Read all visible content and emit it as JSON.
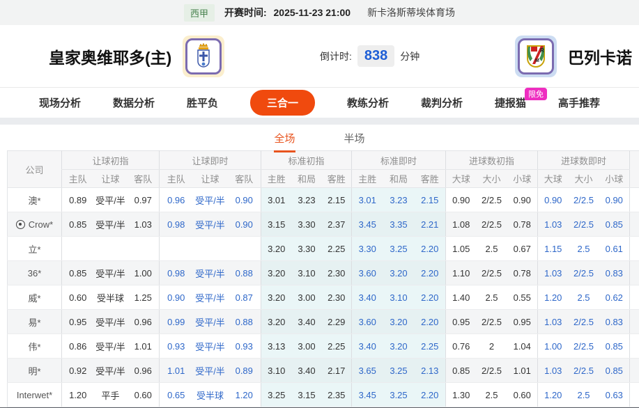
{
  "top_bar": {
    "league": "西甲",
    "kickoff_label": "开赛时间:",
    "kickoff_time": "2025-11-23 21:00",
    "venue": "新卡洛斯蒂埃体育场"
  },
  "match_header": {
    "home_team": "皇家奥维耶多(主)",
    "away_team": "巴列卡诺",
    "countdown_label": "倒计时:",
    "countdown_value": "838",
    "countdown_unit": "分钟"
  },
  "nav": {
    "items": [
      {
        "label": "现场分析",
        "active": false
      },
      {
        "label": "数据分析",
        "active": false
      },
      {
        "label": "胜平负",
        "active": false
      },
      {
        "label": "三合一",
        "active": true
      },
      {
        "label": "教练分析",
        "active": false
      },
      {
        "label": "裁判分析",
        "active": false
      },
      {
        "label": "捷报猫",
        "active": false,
        "badge": "限免"
      },
      {
        "label": "高手推荐",
        "active": false
      }
    ]
  },
  "sub_tabs": [
    {
      "label": "全场",
      "active": true
    },
    {
      "label": "半场",
      "active": false
    }
  ],
  "odds_table": {
    "company_header": "公司",
    "groups": [
      {
        "title": "让球初指",
        "cols": [
          "主队",
          "让球",
          "客队"
        ]
      },
      {
        "title": "让球即时",
        "cols": [
          "主队",
          "让球",
          "客队"
        ]
      },
      {
        "title": "标准初指",
        "cols": [
          "主胜",
          "和局",
          "客胜"
        ]
      },
      {
        "title": "标准即时",
        "cols": [
          "主胜",
          "和局",
          "客胜"
        ]
      },
      {
        "title": "进球数初指",
        "cols": [
          "大球",
          "大小",
          "小球"
        ]
      },
      {
        "title": "进球数即时",
        "cols": [
          "大球",
          "大小",
          "小球"
        ]
      }
    ],
    "rows": [
      {
        "company": "澳*",
        "has_icon": false,
        "handicap_initial": [
          "0.89",
          "受平/半",
          "0.97"
        ],
        "handicap_live": [
          "0.96",
          "受平/半",
          "0.90"
        ],
        "std_initial": [
          "3.01",
          "3.23",
          "2.15"
        ],
        "std_live": [
          "3.01",
          "3.23",
          "2.15"
        ],
        "goals_initial": [
          "0.90",
          "2/2.5",
          "0.90"
        ],
        "goals_live": [
          "0.90",
          "2/2.5",
          "0.90"
        ]
      },
      {
        "company": "Crow*",
        "has_icon": true,
        "handicap_initial": [
          "0.85",
          "受平/半",
          "1.03"
        ],
        "handicap_live": [
          "0.98",
          "受平/半",
          "0.90"
        ],
        "std_initial": [
          "3.15",
          "3.30",
          "2.37"
        ],
        "std_live": [
          "3.45",
          "3.35",
          "2.21"
        ],
        "goals_initial": [
          "1.08",
          "2/2.5",
          "0.78"
        ],
        "goals_live": [
          "1.03",
          "2/2.5",
          "0.85"
        ]
      },
      {
        "company": "立*",
        "has_icon": false,
        "handicap_initial": [
          "",
          "",
          ""
        ],
        "handicap_live": [
          "",
          "",
          ""
        ],
        "std_initial": [
          "3.20",
          "3.30",
          "2.25"
        ],
        "std_live": [
          "3.30",
          "3.25",
          "2.20"
        ],
        "goals_initial": [
          "1.05",
          "2.5",
          "0.67"
        ],
        "goals_live": [
          "1.15",
          "2.5",
          "0.61"
        ]
      },
      {
        "company": "36*",
        "has_icon": false,
        "handicap_initial": [
          "0.85",
          "受平/半",
          "1.00"
        ],
        "handicap_live": [
          "0.98",
          "受平/半",
          "0.88"
        ],
        "std_initial": [
          "3.20",
          "3.10",
          "2.30"
        ],
        "std_live": [
          "3.60",
          "3.20",
          "2.20"
        ],
        "goals_initial": [
          "1.10",
          "2/2.5",
          "0.78"
        ],
        "goals_live": [
          "1.03",
          "2/2.5",
          "0.83"
        ]
      },
      {
        "company": "威*",
        "has_icon": false,
        "handicap_initial": [
          "0.60",
          "受半球",
          "1.25"
        ],
        "handicap_live": [
          "0.90",
          "受平/半",
          "0.87"
        ],
        "std_initial": [
          "3.20",
          "3.00",
          "2.30"
        ],
        "std_live": [
          "3.40",
          "3.10",
          "2.20"
        ],
        "goals_initial": [
          "1.40",
          "2.5",
          "0.55"
        ],
        "goals_live": [
          "1.20",
          "2.5",
          "0.62"
        ]
      },
      {
        "company": "易*",
        "has_icon": false,
        "handicap_initial": [
          "0.95",
          "受平/半",
          "0.96"
        ],
        "handicap_live": [
          "0.99",
          "受平/半",
          "0.88"
        ],
        "std_initial": [
          "3.20",
          "3.40",
          "2.29"
        ],
        "std_live": [
          "3.60",
          "3.20",
          "2.20"
        ],
        "goals_initial": [
          "0.95",
          "2/2.5",
          "0.95"
        ],
        "goals_live": [
          "1.03",
          "2/2.5",
          "0.83"
        ]
      },
      {
        "company": "伟*",
        "has_icon": false,
        "handicap_initial": [
          "0.86",
          "受平/半",
          "1.01"
        ],
        "handicap_live": [
          "0.93",
          "受平/半",
          "0.93"
        ],
        "std_initial": [
          "3.13",
          "3.00",
          "2.25"
        ],
        "std_live": [
          "3.40",
          "3.20",
          "2.25"
        ],
        "goals_initial": [
          "0.76",
          "2",
          "1.04"
        ],
        "goals_live": [
          "1.00",
          "2/2.5",
          "0.85"
        ]
      },
      {
        "company": "明*",
        "has_icon": false,
        "handicap_initial": [
          "0.92",
          "受平/半",
          "0.96"
        ],
        "handicap_live": [
          "1.01",
          "受平/半",
          "0.89"
        ],
        "std_initial": [
          "3.10",
          "3.40",
          "2.17"
        ],
        "std_live": [
          "3.65",
          "3.25",
          "2.13"
        ],
        "goals_initial": [
          "0.85",
          "2/2.5",
          "1.01"
        ],
        "goals_live": [
          "1.03",
          "2/2.5",
          "0.85"
        ]
      },
      {
        "company": "Interwet*",
        "has_icon": false,
        "handicap_initial": [
          "1.20",
          "平手",
          "0.60"
        ],
        "handicap_live": [
          "0.65",
          "受半球",
          "1.20"
        ],
        "std_initial": [
          "3.25",
          "3.15",
          "2.35"
        ],
        "std_live": [
          "3.45",
          "3.25",
          "2.20"
        ],
        "goals_initial": [
          "1.30",
          "2.5",
          "0.60"
        ],
        "goals_live": [
          "1.20",
          "2.5",
          "0.63"
        ]
      }
    ]
  },
  "colors": {
    "accent_orange": "#f04a0e",
    "tab_orange": "#e8541f",
    "live_blue": "#2e67c9",
    "countdown_blue": "#1e5ed6",
    "badge_magenta": "#ee2ec0",
    "league_green": "#48824f",
    "std_cyan_bg": "#eaf6f7"
  }
}
